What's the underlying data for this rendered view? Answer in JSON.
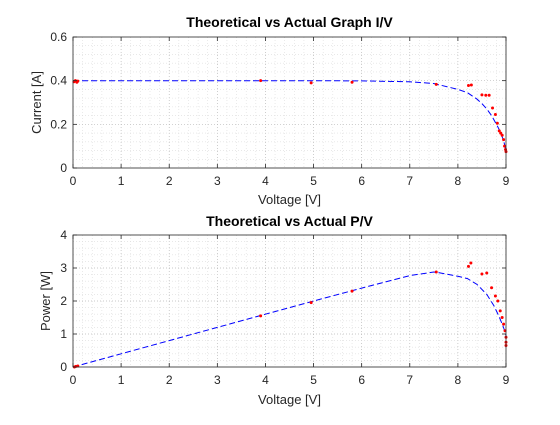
{
  "chart_data": [
    {
      "type": "line",
      "title": "Theoretical vs Actual Graph I/V",
      "xlabel": "Voltage [V]",
      "ylabel": "Current [A]",
      "xlim": [
        0,
        9
      ],
      "ylim": [
        0,
        0.6
      ],
      "xticks": [
        "0",
        "1",
        "2",
        "3",
        "4",
        "5",
        "6",
        "7",
        "8",
        "9"
      ],
      "yticks": [
        "0",
        "0.2",
        "0.4",
        "0.6"
      ],
      "grid": "major and minor, dotted",
      "legend": "none",
      "series": [
        {
          "style": "dashed-line",
          "color": "#0000ff",
          "points": [
            [
              0,
              0.4
            ],
            [
              1,
              0.4
            ],
            [
              2,
              0.4
            ],
            [
              3,
              0.4
            ],
            [
              4,
              0.4
            ],
            [
              5,
              0.4
            ],
            [
              6,
              0.399
            ],
            [
              7,
              0.395
            ],
            [
              7.5,
              0.387
            ],
            [
              8,
              0.36
            ],
            [
              8.2,
              0.345
            ],
            [
              8.4,
              0.315
            ],
            [
              8.5,
              0.295
            ],
            [
              8.6,
              0.27
            ],
            [
              8.7,
              0.24
            ],
            [
              8.8,
              0.2
            ],
            [
              8.85,
              0.18
            ],
            [
              8.9,
              0.155
            ],
            [
              8.95,
              0.125
            ],
            [
              8.98,
              0.1
            ],
            [
              9.0,
              0.07
            ]
          ]
        },
        {
          "style": "markers",
          "color": "#ff0000",
          "points": [
            [
              0.02,
              0.395
            ],
            [
              0.05,
              0.4
            ],
            [
              0.08,
              0.393
            ],
            [
              0.1,
              0.398
            ],
            [
              3.9,
              0.4
            ],
            [
              4.95,
              0.39
            ],
            [
              5.8,
              0.393
            ],
            [
              7.55,
              0.383
            ],
            [
              8.22,
              0.378
            ],
            [
              8.28,
              0.38
            ],
            [
              8.5,
              0.335
            ],
            [
              8.58,
              0.333
            ],
            [
              8.65,
              0.333
            ],
            [
              8.72,
              0.275
            ],
            [
              8.78,
              0.245
            ],
            [
              8.82,
              0.205
            ],
            [
              8.86,
              0.17
            ],
            [
              8.89,
              0.16
            ],
            [
              8.92,
              0.15
            ],
            [
              8.95,
              0.13
            ],
            [
              8.97,
              0.1
            ],
            [
              8.99,
              0.085
            ],
            [
              9.0,
              0.075
            ]
          ]
        }
      ]
    },
    {
      "type": "line",
      "title": "Theoretical vs Actual P/V",
      "xlabel": "Voltage [V]",
      "ylabel": "Power [W]",
      "xlim": [
        0,
        9
      ],
      "ylim": [
        0,
        4
      ],
      "xticks": [
        "0",
        "1",
        "2",
        "3",
        "4",
        "5",
        "6",
        "7",
        "8",
        "9"
      ],
      "yticks": [
        "0",
        "1",
        "2",
        "3",
        "4"
      ],
      "grid": "major and minor, dotted",
      "legend": "none",
      "series": [
        {
          "style": "dashed-line",
          "color": "#0000ff",
          "points": [
            [
              0,
              0
            ],
            [
              1,
              0.4
            ],
            [
              2,
              0.8
            ],
            [
              3,
              1.2
            ],
            [
              4,
              1.6
            ],
            [
              5,
              2.0
            ],
            [
              6,
              2.39
            ],
            [
              7,
              2.77
            ],
            [
              7.5,
              2.88
            ],
            [
              7.6,
              2.86
            ],
            [
              8,
              2.75
            ],
            [
              8.2,
              2.68
            ],
            [
              8.4,
              2.5
            ],
            [
              8.6,
              2.2
            ],
            [
              8.75,
              1.85
            ],
            [
              8.85,
              1.55
            ],
            [
              8.92,
              1.3
            ],
            [
              8.96,
              1.15
            ],
            [
              9.0,
              0.95
            ]
          ]
        },
        {
          "style": "markers",
          "color": "#ff0000",
          "points": [
            [
              0.03,
              0.0
            ],
            [
              0.06,
              0.02
            ],
            [
              0.1,
              0.03
            ],
            [
              3.9,
              1.55
            ],
            [
              4.95,
              1.95
            ],
            [
              5.8,
              2.3
            ],
            [
              7.55,
              2.88
            ],
            [
              8.22,
              3.05
            ],
            [
              8.27,
              3.15
            ],
            [
              8.5,
              2.82
            ],
            [
              8.6,
              2.85
            ],
            [
              8.7,
              2.4
            ],
            [
              8.78,
              2.15
            ],
            [
              8.83,
              2.0
            ],
            [
              8.88,
              1.7
            ],
            [
              8.92,
              1.5
            ],
            [
              8.95,
              1.3
            ],
            [
              8.98,
              1.1
            ],
            [
              9.0,
              0.9
            ],
            [
              9.0,
              0.75
            ],
            [
              9.0,
              0.65
            ]
          ]
        }
      ]
    }
  ]
}
